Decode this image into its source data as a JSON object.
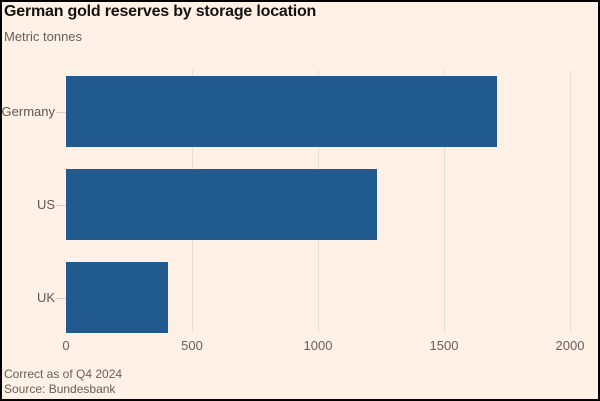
{
  "header": {
    "title": "German gold reserves by storage location",
    "subtitle": "Metric tonnes"
  },
  "footer": {
    "note": "Correct as of Q4 2024",
    "source": "Source: Bundesbank"
  },
  "colors": {
    "background": "#fff1e5",
    "bar": "#215a8f",
    "title_text": "#15120f",
    "muted_text": "#66605c",
    "gridline": "#f0dcca",
    "frame_border": "#000000"
  },
  "chart_data": {
    "type": "bar",
    "orientation": "horizontal",
    "title": "German gold reserves by storage location",
    "subtitle": "Metric tonnes",
    "categories": [
      "Germany",
      "US",
      "UK"
    ],
    "values": [
      1710,
      1236,
      406
    ],
    "xlabel": "",
    "ylabel": "",
    "xlim": [
      0,
      2000
    ],
    "xticks": [
      0,
      500,
      1000,
      1500,
      2000
    ],
    "grid": "vertical-only",
    "legend": "none",
    "note": "Correct as of Q4 2024",
    "source": "Source: Bundesbank"
  }
}
